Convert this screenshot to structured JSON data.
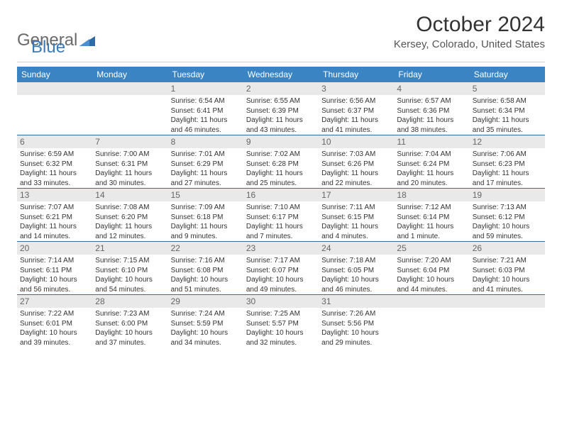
{
  "logo": {
    "text_general": "General",
    "text_blue": "Blue"
  },
  "title": "October 2024",
  "location": "Kersey, Colorado, United States",
  "colors": {
    "header_bar": "#3a84c4",
    "header_text": "#ffffff",
    "daynum_bg": "#e9e9e9",
    "week_border": "#3a6a9a",
    "logo_gray": "#6a6a6a",
    "logo_blue": "#3a7ab8"
  },
  "days_of_week": [
    "Sunday",
    "Monday",
    "Tuesday",
    "Wednesday",
    "Thursday",
    "Friday",
    "Saturday"
  ],
  "weeks": [
    [
      null,
      null,
      {
        "n": "1",
        "sr": "Sunrise: 6:54 AM",
        "ss": "Sunset: 6:41 PM",
        "d1": "Daylight: 11 hours",
        "d2": "and 46 minutes."
      },
      {
        "n": "2",
        "sr": "Sunrise: 6:55 AM",
        "ss": "Sunset: 6:39 PM",
        "d1": "Daylight: 11 hours",
        "d2": "and 43 minutes."
      },
      {
        "n": "3",
        "sr": "Sunrise: 6:56 AM",
        "ss": "Sunset: 6:37 PM",
        "d1": "Daylight: 11 hours",
        "d2": "and 41 minutes."
      },
      {
        "n": "4",
        "sr": "Sunrise: 6:57 AM",
        "ss": "Sunset: 6:36 PM",
        "d1": "Daylight: 11 hours",
        "d2": "and 38 minutes."
      },
      {
        "n": "5",
        "sr": "Sunrise: 6:58 AM",
        "ss": "Sunset: 6:34 PM",
        "d1": "Daylight: 11 hours",
        "d2": "and 35 minutes."
      }
    ],
    [
      {
        "n": "6",
        "sr": "Sunrise: 6:59 AM",
        "ss": "Sunset: 6:32 PM",
        "d1": "Daylight: 11 hours",
        "d2": "and 33 minutes."
      },
      {
        "n": "7",
        "sr": "Sunrise: 7:00 AM",
        "ss": "Sunset: 6:31 PM",
        "d1": "Daylight: 11 hours",
        "d2": "and 30 minutes."
      },
      {
        "n": "8",
        "sr": "Sunrise: 7:01 AM",
        "ss": "Sunset: 6:29 PM",
        "d1": "Daylight: 11 hours",
        "d2": "and 27 minutes."
      },
      {
        "n": "9",
        "sr": "Sunrise: 7:02 AM",
        "ss": "Sunset: 6:28 PM",
        "d1": "Daylight: 11 hours",
        "d2": "and 25 minutes."
      },
      {
        "n": "10",
        "sr": "Sunrise: 7:03 AM",
        "ss": "Sunset: 6:26 PM",
        "d1": "Daylight: 11 hours",
        "d2": "and 22 minutes."
      },
      {
        "n": "11",
        "sr": "Sunrise: 7:04 AM",
        "ss": "Sunset: 6:24 PM",
        "d1": "Daylight: 11 hours",
        "d2": "and 20 minutes."
      },
      {
        "n": "12",
        "sr": "Sunrise: 7:06 AM",
        "ss": "Sunset: 6:23 PM",
        "d1": "Daylight: 11 hours",
        "d2": "and 17 minutes."
      }
    ],
    [
      {
        "n": "13",
        "sr": "Sunrise: 7:07 AM",
        "ss": "Sunset: 6:21 PM",
        "d1": "Daylight: 11 hours",
        "d2": "and 14 minutes."
      },
      {
        "n": "14",
        "sr": "Sunrise: 7:08 AM",
        "ss": "Sunset: 6:20 PM",
        "d1": "Daylight: 11 hours",
        "d2": "and 12 minutes."
      },
      {
        "n": "15",
        "sr": "Sunrise: 7:09 AM",
        "ss": "Sunset: 6:18 PM",
        "d1": "Daylight: 11 hours",
        "d2": "and 9 minutes."
      },
      {
        "n": "16",
        "sr": "Sunrise: 7:10 AM",
        "ss": "Sunset: 6:17 PM",
        "d1": "Daylight: 11 hours",
        "d2": "and 7 minutes."
      },
      {
        "n": "17",
        "sr": "Sunrise: 7:11 AM",
        "ss": "Sunset: 6:15 PM",
        "d1": "Daylight: 11 hours",
        "d2": "and 4 minutes."
      },
      {
        "n": "18",
        "sr": "Sunrise: 7:12 AM",
        "ss": "Sunset: 6:14 PM",
        "d1": "Daylight: 11 hours",
        "d2": "and 1 minute."
      },
      {
        "n": "19",
        "sr": "Sunrise: 7:13 AM",
        "ss": "Sunset: 6:12 PM",
        "d1": "Daylight: 10 hours",
        "d2": "and 59 minutes."
      }
    ],
    [
      {
        "n": "20",
        "sr": "Sunrise: 7:14 AM",
        "ss": "Sunset: 6:11 PM",
        "d1": "Daylight: 10 hours",
        "d2": "and 56 minutes."
      },
      {
        "n": "21",
        "sr": "Sunrise: 7:15 AM",
        "ss": "Sunset: 6:10 PM",
        "d1": "Daylight: 10 hours",
        "d2": "and 54 minutes."
      },
      {
        "n": "22",
        "sr": "Sunrise: 7:16 AM",
        "ss": "Sunset: 6:08 PM",
        "d1": "Daylight: 10 hours",
        "d2": "and 51 minutes."
      },
      {
        "n": "23",
        "sr": "Sunrise: 7:17 AM",
        "ss": "Sunset: 6:07 PM",
        "d1": "Daylight: 10 hours",
        "d2": "and 49 minutes."
      },
      {
        "n": "24",
        "sr": "Sunrise: 7:18 AM",
        "ss": "Sunset: 6:05 PM",
        "d1": "Daylight: 10 hours",
        "d2": "and 46 minutes."
      },
      {
        "n": "25",
        "sr": "Sunrise: 7:20 AM",
        "ss": "Sunset: 6:04 PM",
        "d1": "Daylight: 10 hours",
        "d2": "and 44 minutes."
      },
      {
        "n": "26",
        "sr": "Sunrise: 7:21 AM",
        "ss": "Sunset: 6:03 PM",
        "d1": "Daylight: 10 hours",
        "d2": "and 41 minutes."
      }
    ],
    [
      {
        "n": "27",
        "sr": "Sunrise: 7:22 AM",
        "ss": "Sunset: 6:01 PM",
        "d1": "Daylight: 10 hours",
        "d2": "and 39 minutes."
      },
      {
        "n": "28",
        "sr": "Sunrise: 7:23 AM",
        "ss": "Sunset: 6:00 PM",
        "d1": "Daylight: 10 hours",
        "d2": "and 37 minutes."
      },
      {
        "n": "29",
        "sr": "Sunrise: 7:24 AM",
        "ss": "Sunset: 5:59 PM",
        "d1": "Daylight: 10 hours",
        "d2": "and 34 minutes."
      },
      {
        "n": "30",
        "sr": "Sunrise: 7:25 AM",
        "ss": "Sunset: 5:57 PM",
        "d1": "Daylight: 10 hours",
        "d2": "and 32 minutes."
      },
      {
        "n": "31",
        "sr": "Sunrise: 7:26 AM",
        "ss": "Sunset: 5:56 PM",
        "d1": "Daylight: 10 hours",
        "d2": "and 29 minutes."
      },
      null,
      null
    ]
  ]
}
